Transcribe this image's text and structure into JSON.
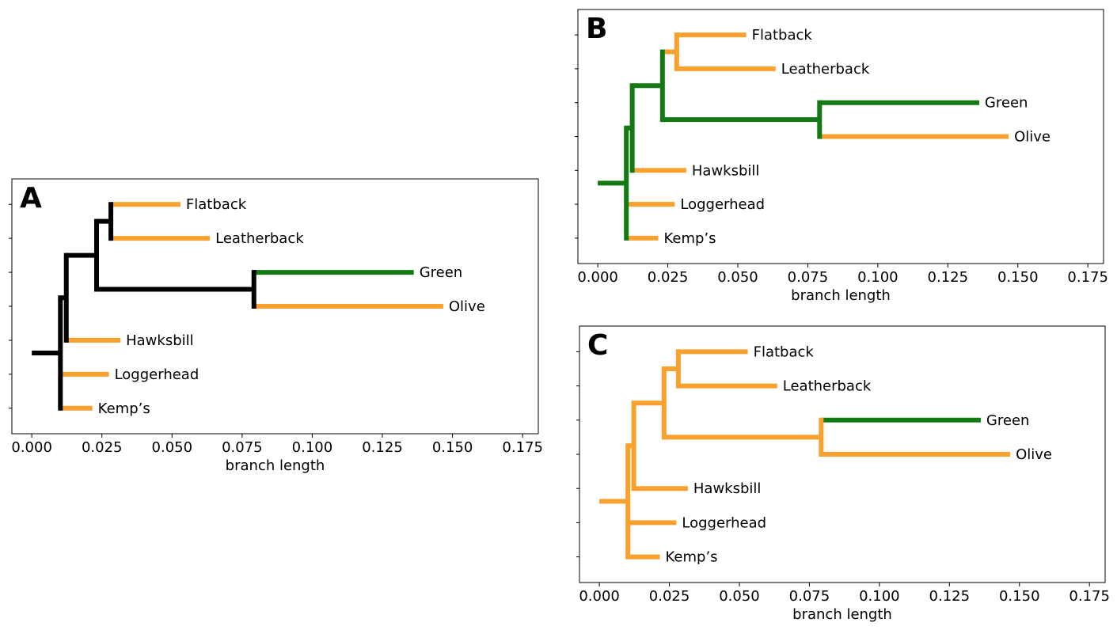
{
  "chart_data": [
    {
      "type": "tree",
      "panel": "A",
      "xlabel": "branch length",
      "xlim": [
        -0.0071,
        0.1806
      ],
      "xticks": [
        {
          "value": 0,
          "label": "0.000"
        },
        {
          "value": 0.025,
          "label": "0.025"
        },
        {
          "value": 0.05,
          "label": "0.050"
        },
        {
          "value": 0.075,
          "label": "0.075"
        },
        {
          "value": 0.1,
          "label": "0.100"
        },
        {
          "value": 0.125,
          "label": "0.125"
        },
        {
          "value": 0.15,
          "label": "0.150"
        },
        {
          "value": 0.175,
          "label": "0.175"
        }
      ],
      "nodes": [
        {
          "x": 0
        },
        {
          "x": 0.0102,
          "parent": 0,
          "color": "#000000"
        },
        {
          "x": 0.0123,
          "parent": 1,
          "color": "#000000"
        },
        {
          "x": 0.0231,
          "parent": 2,
          "color": "#000000"
        },
        {
          "x": 0.0282,
          "parent": 3,
          "color": "#000000"
        },
        {
          "x": 0.0792,
          "parent": 3,
          "color": "#000000"
        },
        {
          "name": "Flatback",
          "x": 0.053,
          "parent": 4,
          "color": "#f9a12e"
        },
        {
          "name": "Leatherback",
          "x": 0.0635,
          "parent": 4,
          "color": "#f9a12e"
        },
        {
          "name": "Green",
          "x": 0.1362,
          "parent": 5,
          "color": "#137a13"
        },
        {
          "name": "Olive",
          "x": 0.1467,
          "parent": 5,
          "color": "#f9a12e"
        },
        {
          "name": "Hawksbill",
          "x": 0.0316,
          "parent": 2,
          "color": "#f9a12e"
        },
        {
          "name": "Loggerhead",
          "x": 0.0275,
          "parent": 1,
          "color": "#f9a12e"
        },
        {
          "name": "Kemp’s",
          "x": 0.0216,
          "parent": 1,
          "color": "#f9a12e"
        }
      ]
    },
    {
      "type": "tree",
      "panel": "B",
      "xlabel": "branch length",
      "xlim": [
        -0.0071,
        0.1806
      ],
      "xticks": [
        {
          "value": 0,
          "label": "0.000"
        },
        {
          "value": 0.025,
          "label": "0.025"
        },
        {
          "value": 0.05,
          "label": "0.050"
        },
        {
          "value": 0.075,
          "label": "0.075"
        },
        {
          "value": 0.1,
          "label": "0.100"
        },
        {
          "value": 0.125,
          "label": "0.125"
        },
        {
          "value": 0.15,
          "label": "0.150"
        },
        {
          "value": 0.175,
          "label": "0.175"
        }
      ],
      "nodes": [
        {
          "x": 0
        },
        {
          "x": 0.0102,
          "parent": 0,
          "color": "#137a13"
        },
        {
          "x": 0.0123,
          "parent": 1,
          "color": "#137a13"
        },
        {
          "x": 0.0231,
          "parent": 2,
          "color": "#137a13"
        },
        {
          "x": 0.0282,
          "parent": 3,
          "color": "#f9a12e"
        },
        {
          "x": 0.0792,
          "parent": 3,
          "color": "#137a13"
        },
        {
          "name": "Flatback",
          "x": 0.053,
          "parent": 4,
          "color": "#f9a12e"
        },
        {
          "name": "Leatherback",
          "x": 0.0635,
          "parent": 4,
          "color": "#f9a12e"
        },
        {
          "name": "Green",
          "x": 0.1362,
          "parent": 5,
          "color": "#137a13"
        },
        {
          "name": "Olive",
          "x": 0.1467,
          "parent": 5,
          "color": "#f9a12e"
        },
        {
          "name": "Hawksbill",
          "x": 0.0316,
          "parent": 2,
          "color": "#f9a12e"
        },
        {
          "name": "Loggerhead",
          "x": 0.0275,
          "parent": 1,
          "color": "#f9a12e"
        },
        {
          "name": "Kemp’s",
          "x": 0.0216,
          "parent": 1,
          "color": "#f9a12e"
        }
      ]
    },
    {
      "type": "tree",
      "panel": "C",
      "xlabel": "branch length",
      "xlim": [
        -0.0071,
        0.1806
      ],
      "xticks": [
        {
          "value": 0,
          "label": "0.000"
        },
        {
          "value": 0.025,
          "label": "0.025"
        },
        {
          "value": 0.05,
          "label": "0.050"
        },
        {
          "value": 0.075,
          "label": "0.075"
        },
        {
          "value": 0.1,
          "label": "0.100"
        },
        {
          "value": 0.125,
          "label": "0.125"
        },
        {
          "value": 0.15,
          "label": "0.150"
        },
        {
          "value": 0.175,
          "label": "0.175"
        }
      ],
      "nodes": [
        {
          "x": 0
        },
        {
          "x": 0.0102,
          "parent": 0,
          "color": "#f9a12e"
        },
        {
          "x": 0.0123,
          "parent": 1,
          "color": "#f9a12e"
        },
        {
          "x": 0.0231,
          "parent": 2,
          "color": "#f9a12e"
        },
        {
          "x": 0.0282,
          "parent": 3,
          "color": "#f9a12e"
        },
        {
          "x": 0.0792,
          "parent": 3,
          "color": "#f9a12e"
        },
        {
          "name": "Flatback",
          "x": 0.053,
          "parent": 4,
          "color": "#f9a12e"
        },
        {
          "name": "Leatherback",
          "x": 0.0635,
          "parent": 4,
          "color": "#f9a12e"
        },
        {
          "name": "Green",
          "x": 0.1362,
          "parent": 5,
          "color": "#137a13"
        },
        {
          "name": "Olive",
          "x": 0.1467,
          "parent": 5,
          "color": "#f9a12e"
        },
        {
          "name": "Hawksbill",
          "x": 0.0316,
          "parent": 2,
          "color": "#f9a12e"
        },
        {
          "name": "Loggerhead",
          "x": 0.0275,
          "parent": 1,
          "color": "#f9a12e"
        },
        {
          "name": "Kemp’s",
          "x": 0.0216,
          "parent": 1,
          "color": "#f9a12e"
        }
      ]
    }
  ]
}
